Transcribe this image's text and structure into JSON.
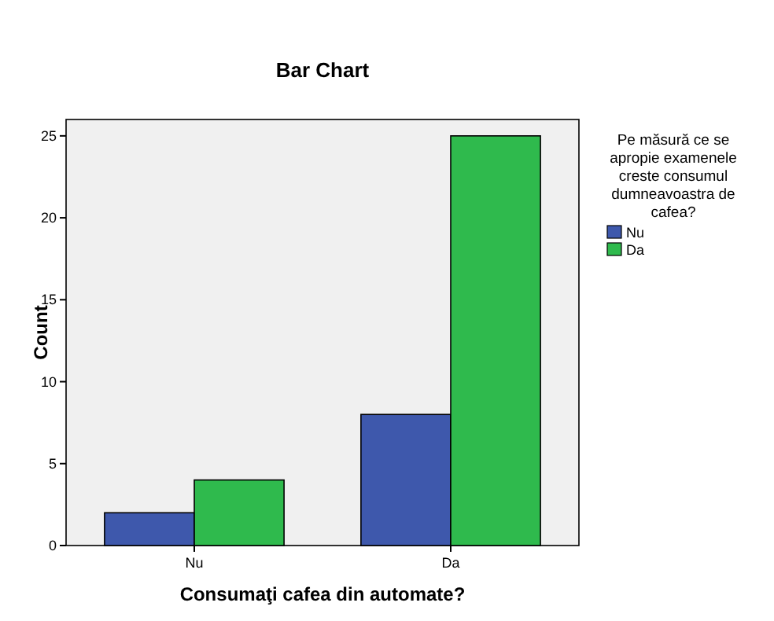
{
  "chart_data": {
    "type": "bar",
    "title": "Bar Chart",
    "xlabel": "Consumaţi cafea din automate?",
    "ylabel": "Count",
    "legend_title": "Pe măsură ce se apropie examenele creste consumul dumneavoastra de cafea?",
    "categories": [
      "Nu",
      "Da"
    ],
    "series": [
      {
        "name": "Nu",
        "color": "#3e58ac",
        "values": [
          2,
          8
        ]
      },
      {
        "name": "Da",
        "color": "#2fba4d",
        "values": [
          4,
          25
        ]
      }
    ],
    "ylim": [
      0,
      26
    ],
    "yticks": [
      0,
      5,
      10,
      15,
      20,
      25
    ],
    "grid": false,
    "legend": "right"
  }
}
